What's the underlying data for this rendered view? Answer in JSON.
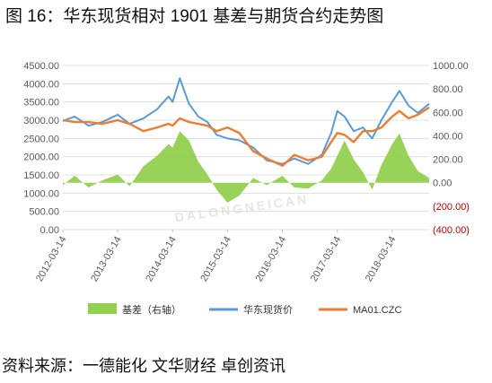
{
  "title": "图 16：华东现货相对 1901 基差与期货合约走势图",
  "source": "资料来源：一德能化  文华财经  卓创资讯",
  "watermark": "DALONGNEICAN",
  "colors": {
    "basis": "#92d050",
    "spot": "#5b9bd5",
    "futures": "#ed7d31",
    "left_axis_text": "#595959",
    "right_axis_text": "#595959",
    "negative_text": "#c00000",
    "grid": "#d9d9d9"
  },
  "chart_data": {
    "type": "line",
    "x_ticks": [
      "2012-03-14",
      "2013-03-14",
      "2014-03-14",
      "2015-03-14",
      "2016-03-14",
      "2017-03-14",
      "2018-03-14"
    ],
    "x_range": [
      "2012-03-14",
      "2018-11-15"
    ],
    "left_axis": {
      "range": [
        0,
        4500
      ],
      "tick_values": [
        4500,
        4000,
        3500,
        3000,
        2500,
        2000,
        1500,
        1000,
        500,
        0
      ],
      "tick_labels": [
        "4500.00",
        "4000.00",
        "3500.00",
        "3000.00",
        "2500.00",
        "2000.00",
        "1500.00",
        "1000.00",
        "500.00",
        "0.00"
      ]
    },
    "right_axis": {
      "range": [
        -400,
        1000
      ],
      "tick_values": [
        1000,
        800,
        600,
        400,
        200,
        0,
        -200,
        -400
      ],
      "tick_labels": [
        "1000.00",
        "800.00",
        "600.00",
        "400.00",
        "200.00",
        "0.00",
        "(200.00)",
        "(400.00)"
      ]
    },
    "grid": true,
    "legend_position": "bottom",
    "series": [
      {
        "name": "基差（右轴）",
        "type": "area",
        "axis": "right",
        "x": [
          "2012-03-14",
          "2012-06-01",
          "2012-09-01",
          "2012-12-01",
          "2013-03-14",
          "2013-06-01",
          "2013-09-01",
          "2013-12-01",
          "2014-02-15",
          "2014-03-14",
          "2014-05-01",
          "2014-07-01",
          "2014-09-01",
          "2014-11-01",
          "2015-01-01",
          "2015-03-14",
          "2015-06-01",
          "2015-09-01",
          "2015-12-01",
          "2016-03-14",
          "2016-06-01",
          "2016-09-01",
          "2016-12-01",
          "2017-02-01",
          "2017-03-14",
          "2017-05-01",
          "2017-07-01",
          "2017-09-01",
          "2017-11-01",
          "2018-01-01",
          "2018-03-14",
          "2018-05-01",
          "2018-07-01",
          "2018-09-01",
          "2018-11-15"
        ],
        "values": [
          -20,
          60,
          -40,
          20,
          70,
          -30,
          140,
          230,
          330,
          300,
          440,
          360,
          180,
          70,
          -60,
          -170,
          -110,
          40,
          -20,
          60,
          -40,
          -50,
          20,
          120,
          230,
          360,
          200,
          90,
          -60,
          150,
          330,
          420,
          230,
          100,
          40
        ]
      },
      {
        "name": "华东现货价",
        "type": "line",
        "axis": "left",
        "x": [
          "2012-03-14",
          "2012-06-01",
          "2012-09-01",
          "2012-12-01",
          "2013-03-14",
          "2013-06-01",
          "2013-09-01",
          "2013-12-01",
          "2014-02-15",
          "2014-03-14",
          "2014-05-01",
          "2014-07-01",
          "2014-09-01",
          "2014-11-01",
          "2015-01-01",
          "2015-03-14",
          "2015-06-01",
          "2015-09-01",
          "2015-12-01",
          "2016-03-14",
          "2016-06-01",
          "2016-09-01",
          "2016-12-01",
          "2017-02-01",
          "2017-03-14",
          "2017-05-01",
          "2017-07-01",
          "2017-09-01",
          "2017-11-01",
          "2018-01-01",
          "2018-03-14",
          "2018-05-01",
          "2018-07-01",
          "2018-09-01",
          "2018-11-15"
        ],
        "values": [
          2980,
          3100,
          2850,
          2950,
          3150,
          2900,
          3050,
          3300,
          3650,
          3500,
          4150,
          3450,
          3100,
          2950,
          2600,
          2500,
          2450,
          2250,
          1900,
          1800,
          1950,
          1800,
          2050,
          2650,
          3250,
          3100,
          2700,
          2800,
          2500,
          3000,
          3500,
          3800,
          3400,
          3200,
          3450
        ]
      },
      {
        "name": "MA01.CZC",
        "type": "line",
        "axis": "left",
        "x": [
          "2012-03-14",
          "2012-06-01",
          "2012-09-01",
          "2012-12-01",
          "2013-03-14",
          "2013-06-01",
          "2013-09-01",
          "2013-12-01",
          "2014-02-15",
          "2014-03-14",
          "2014-05-01",
          "2014-07-01",
          "2014-09-01",
          "2014-11-01",
          "2015-01-01",
          "2015-03-14",
          "2015-06-01",
          "2015-09-01",
          "2015-12-01",
          "2016-03-14",
          "2016-06-01",
          "2016-09-01",
          "2016-12-01",
          "2017-02-01",
          "2017-03-14",
          "2017-05-01",
          "2017-07-01",
          "2017-09-01",
          "2017-11-01",
          "2018-01-01",
          "2018-03-14",
          "2018-05-01",
          "2018-07-01",
          "2018-09-01",
          "2018-11-15"
        ],
        "values": [
          3000,
          2950,
          2950,
          2900,
          3000,
          2900,
          2700,
          2800,
          2900,
          2850,
          3050,
          2950,
          2900,
          2850,
          2700,
          2800,
          2650,
          2150,
          1950,
          1750,
          2050,
          1900,
          2000,
          2400,
          2650,
          2600,
          2400,
          2700,
          2700,
          2800,
          3100,
          3250,
          3050,
          3150,
          3350
        ]
      }
    ]
  }
}
